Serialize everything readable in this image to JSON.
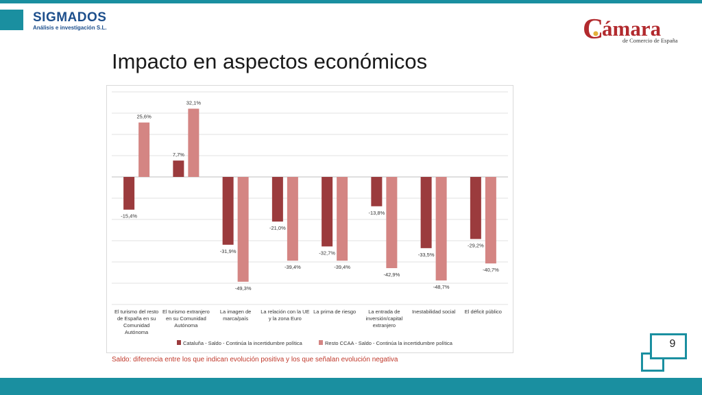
{
  "header": {
    "company_name": "SIGMADOS",
    "company_sub": "Análisis e investigación S.L.",
    "partner_name": "ámara",
    "partner_initial": "C",
    "partner_sub": "de Comercio de España"
  },
  "title": "Impacto en aspectos económicos",
  "footnote": "Saldo: diferencia entre los que indican evolución positiva y los que señalan evolución negativa",
  "page_number": "9",
  "colors": {
    "accent": "#1a8fa0",
    "brand_blue": "#1d4f8c",
    "camara_red": "#b22a2e",
    "series1": "#9b3b3d",
    "series2": "#d48583",
    "footnote": "#c0392b"
  },
  "chart_data": {
    "type": "bar",
    "categories": [
      "El turismo del resto de España en su Comunidad Autónoma",
      "El turismo extranjero en su Comunidad Autónoma",
      "La imagen de marca/país",
      "La relación con la UE y la zona Euro",
      "La prima de riesgo",
      "La entrada de inversión/capital extranjero",
      "Inestabilidad social",
      "El déficit público"
    ],
    "category_lines": [
      [
        "El turismo del resto",
        "de España en su",
        "Comunidad",
        "Autónoma"
      ],
      [
        "El turismo extranjero",
        "en su Comunidad",
        "Autónoma"
      ],
      [
        "La imagen de",
        "marca/país"
      ],
      [
        "La relación con la UE",
        "y la zona Euro"
      ],
      [
        "La prima de riesgo"
      ],
      [
        "La entrada de",
        "inversión/capital",
        "extranjero"
      ],
      [
        "Inestabilidad social"
      ],
      [
        "El déficit público"
      ]
    ],
    "series": [
      {
        "name": "Cataluña - Saldo - Continúa la incertidumbre política",
        "values": [
          -15.4,
          7.7,
          -31.9,
          -21.0,
          -32.7,
          -13.8,
          -33.5,
          -29.2
        ],
        "labels": [
          "-15,4%",
          "7,7%",
          "-31,9%",
          "-21,0%",
          "-32,7%",
          "-13,8%",
          "-33,5%",
          "-29,2%"
        ]
      },
      {
        "name": "Resto CCAA - Saldo - Continúa la incertidumbre política",
        "values": [
          25.6,
          32.1,
          -49.3,
          -39.4,
          -39.4,
          -42.9,
          -48.7,
          -40.7
        ],
        "labels": [
          "25,6%",
          "32,1%",
          "-49,3%",
          "-39,4%",
          "-39,4%",
          "-42,9%",
          "-48,7%",
          "-40,7%"
        ]
      }
    ],
    "ylim": [
      -60,
      40
    ],
    "grid": true,
    "legend": "bottom"
  }
}
